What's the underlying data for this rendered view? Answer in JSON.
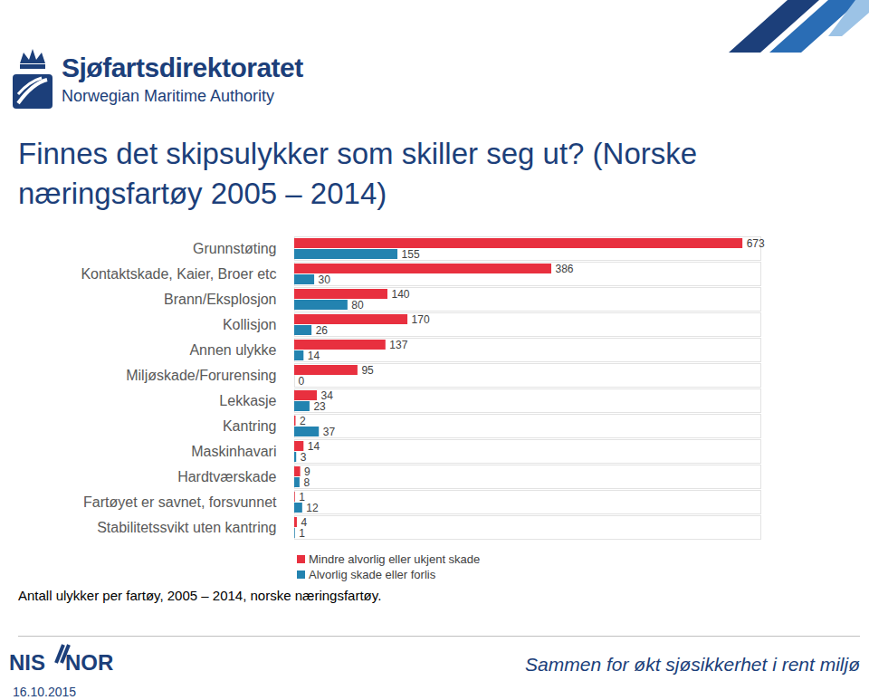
{
  "header": {
    "logo_name": "Sjøfartsdirektoratet",
    "logo_subtitle": "Norwegian Maritime Authority"
  },
  "chart_data": {
    "type": "bar",
    "orientation": "horizontal",
    "title": "Finnes det skipsulykker som skiller seg ut? (Norske næringsfartøy 2005 – 2014)",
    "caption": "Antall ulykker per fartøy, 2005 – 2014, norske næringsfartøy.",
    "categories": [
      "Grunnstøting",
      "Kontaktskade, Kaier, Broer etc",
      "Brann/Eksplosjon",
      "Kollisjon",
      "Annen ulykke",
      "Miljøskade/Forurensing",
      "Lekkasje",
      "Kantring",
      "Maskinhavari",
      "Hardtværskade",
      "Fartøyet er savnet, forsvunnet",
      "Stabilitetssvikt uten kantring"
    ],
    "series": [
      {
        "name": "Mindre alvorlig eller ukjent skade",
        "color": "#e8303f",
        "values": [
          673,
          386,
          140,
          170,
          137,
          95,
          34,
          2,
          14,
          9,
          1,
          4
        ]
      },
      {
        "name": "Alvorlig skade eller forlis",
        "color": "#2383b0",
        "values": [
          155,
          30,
          80,
          26,
          14,
          0,
          23,
          37,
          3,
          8,
          12,
          1
        ]
      }
    ],
    "xlim": [
      0,
      700
    ],
    "tick_labels": "y",
    "data_labels": true,
    "legend": "bottom-left",
    "grid": false
  },
  "footer": {
    "logo_left": "NIS",
    "logo_right": "NOR",
    "slogan": "Sammen for økt sjøsikkerhet i rent miljø",
    "date": "16.10.2015"
  }
}
